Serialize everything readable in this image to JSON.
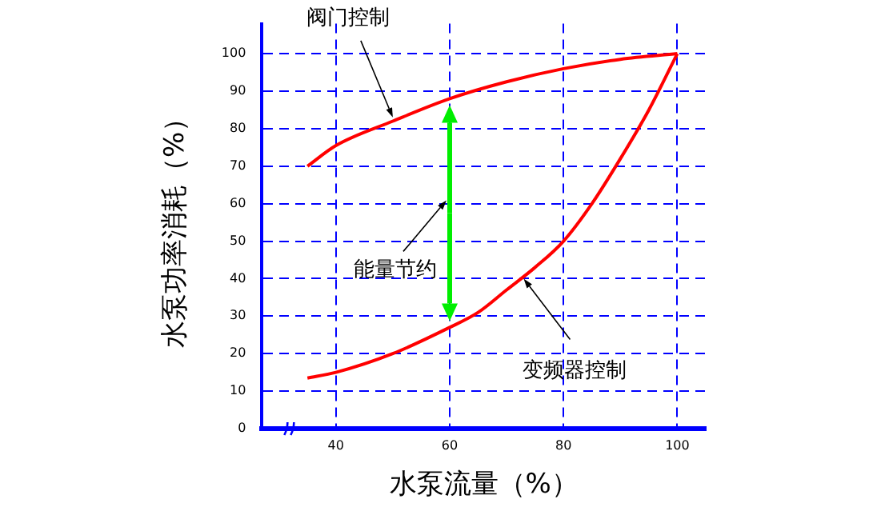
{
  "chart_data": {
    "type": "line",
    "xlabel": "水泵流量（%）",
    "ylabel": "水泵功率消耗（%）",
    "x": [
      35,
      40,
      50,
      60,
      70,
      80,
      90,
      100
    ],
    "series": [
      {
        "color": "#ff0000",
        "values": [
          70,
          75.5,
          82,
          88,
          92.5,
          96,
          98.5,
          100
        ]
      },
      {
        "color": "#ff0000",
        "x": [
          35,
          40,
          50,
          60,
          65,
          70,
          75,
          80,
          85,
          90,
          95,
          100
        ],
        "values": [
          13.5,
          15,
          20,
          27,
          31,
          37,
          43,
          50,
          60,
          72,
          85,
          100
        ]
      }
    ],
    "xlim": [
      27,
      105
    ],
    "xticks": [
      40,
      60,
      80,
      100
    ],
    "ylim": [
      0,
      108
    ],
    "yticks": [
      0,
      10,
      20,
      30,
      40,
      50,
      60,
      70,
      80,
      90,
      100
    ],
    "grid": true,
    "legend": false,
    "marker": "none",
    "line_style": "solid",
    "annotations": [
      {
        "text": "阀门控制",
        "x": 50,
        "y": 83
      },
      "能量节约",
      {
        "text": "变频器控制",
        "x": 73,
        "y": 40
      }
    ]
  }
}
